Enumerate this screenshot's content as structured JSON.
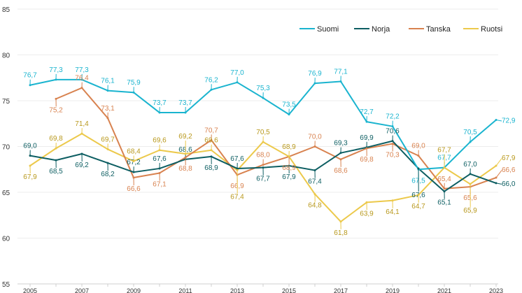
{
  "chart_data": {
    "type": "line",
    "title": "",
    "xlabel": "",
    "ylabel": "",
    "x": [
      2005,
      2006,
      2007,
      2008,
      2009,
      2010,
      2011,
      2012,
      2013,
      2014,
      2015,
      2016,
      2017,
      2018,
      2019,
      2020,
      2021,
      2022,
      2023
    ],
    "x_tick_labels": [
      "2005",
      "2007",
      "2009",
      "2011",
      "2013",
      "2015",
      "2017",
      "2019",
      "2021",
      "2023"
    ],
    "ylim": [
      55,
      85
    ],
    "y_ticks": [
      55,
      60,
      65,
      70,
      75,
      80,
      85
    ],
    "grid": true,
    "legend_position": "top-right",
    "series": [
      {
        "name": "Suomi",
        "color": "#1ab4cf",
        "label_color": "#1ab4cf",
        "values": [
          76.7,
          77.3,
          77.3,
          76.1,
          75.9,
          73.7,
          73.7,
          76.2,
          77.0,
          75.3,
          73.5,
          76.9,
          77.1,
          72.7,
          72.2,
          67.5,
          67.7,
          70.5,
          72.9
        ]
      },
      {
        "name": "Norja",
        "color": "#0d5e62",
        "label_color": "#0d5e62",
        "values": [
          69.0,
          68.5,
          69.2,
          68.2,
          67.2,
          67.6,
          68.6,
          68.9,
          67.6,
          67.7,
          67.9,
          67.4,
          69.3,
          69.9,
          70.6,
          67.6,
          65.1,
          67.0,
          66.0
        ]
      },
      {
        "name": "Tanska",
        "color": "#d8824f",
        "label_color": "#d8824f",
        "values": [
          null,
          75.2,
          76.4,
          73.1,
          66.6,
          67.1,
          68.8,
          70.7,
          66.9,
          68.0,
          68.9,
          70.0,
          68.6,
          69.8,
          70.3,
          69.0,
          65.4,
          65.6,
          66.6
        ]
      },
      {
        "name": "Ruotsi",
        "color": "#ecc94b",
        "label_color": "#b8981c",
        "values": [
          67.9,
          69.8,
          71.4,
          69.7,
          68.4,
          69.6,
          69.2,
          69.6,
          67.4,
          70.5,
          68.9,
          64.8,
          61.8,
          63.9,
          64.1,
          64.7,
          67.7,
          65.9,
          67.9
        ]
      }
    ]
  }
}
